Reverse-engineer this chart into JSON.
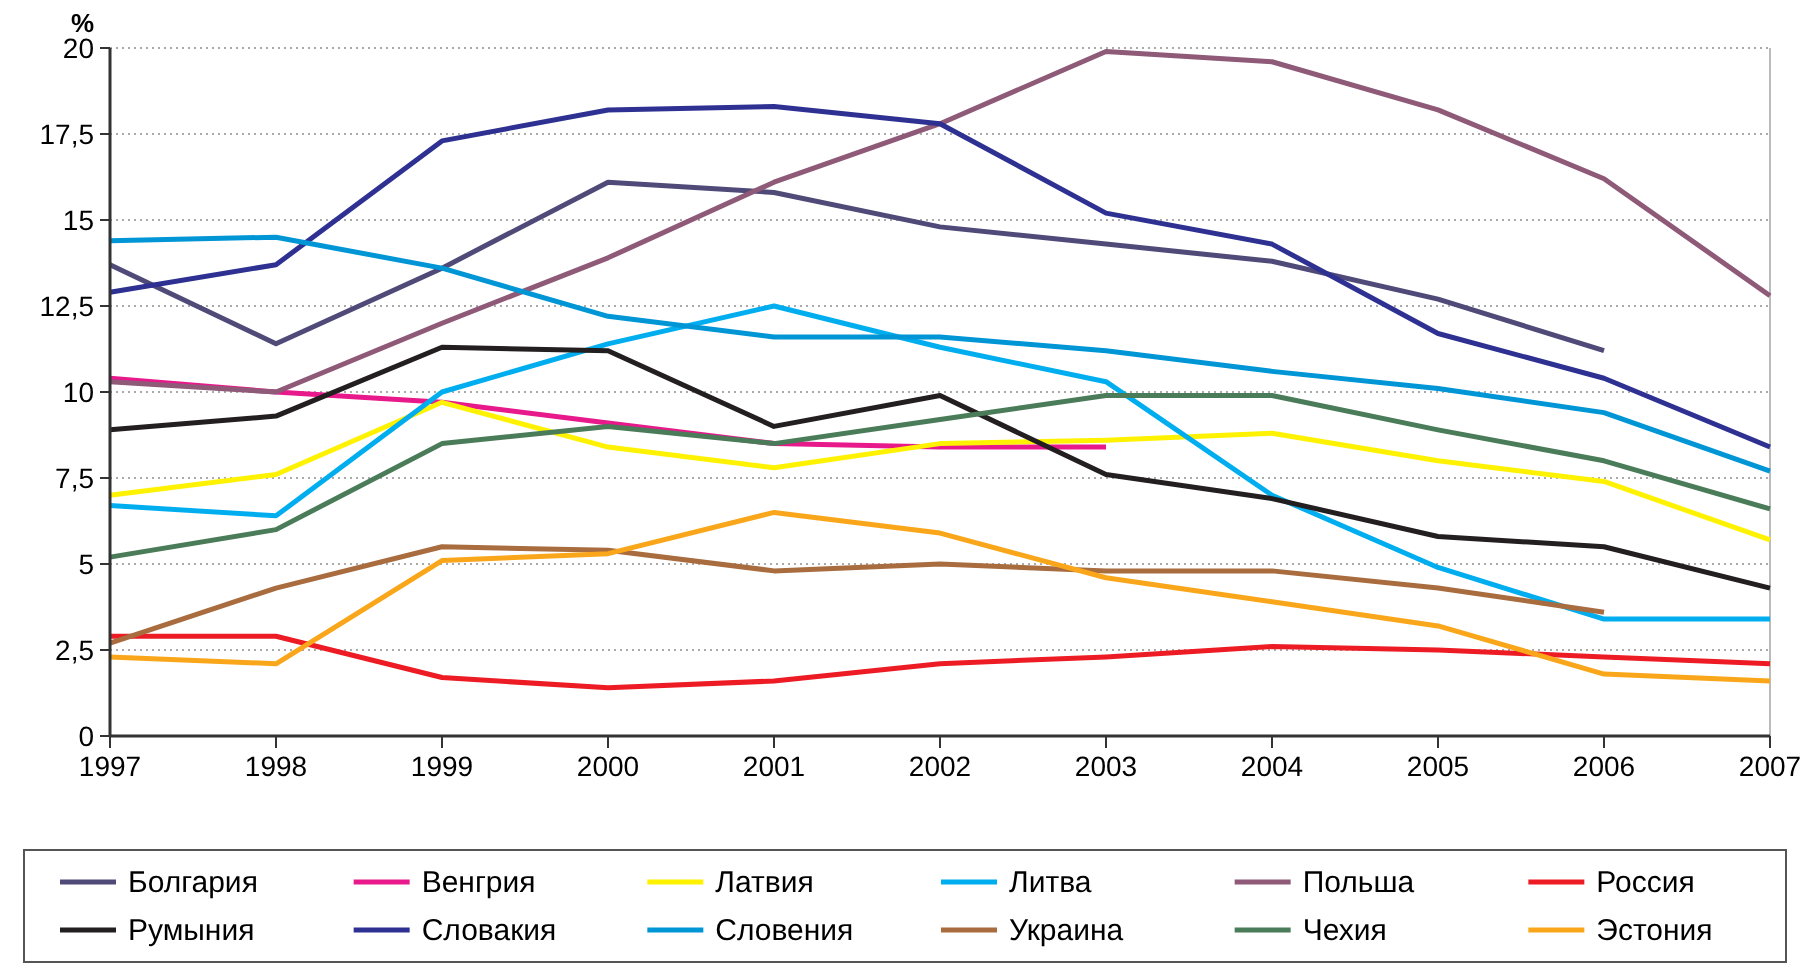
{
  "chart_data": {
    "type": "line",
    "ylabel": "%",
    "x": [
      1997,
      1998,
      1999,
      2000,
      2001,
      2002,
      2003,
      2004,
      2005,
      2006,
      2007
    ],
    "xlim": [
      1997,
      2007
    ],
    "xticks": [
      1997,
      1998,
      1999,
      2000,
      2001,
      2002,
      2003,
      2004,
      2005,
      2006,
      2007
    ],
    "ylim": [
      0,
      20
    ],
    "yticks": [
      0,
      {
        "value": 2.5,
        "label": "2,5"
      },
      5,
      {
        "value": 7.5,
        "label": "7,5"
      },
      10,
      {
        "value": 12.5,
        "label": "12,5"
      },
      15,
      {
        "value": 17.5,
        "label": "17,5"
      },
      20
    ],
    "grid": "y",
    "legend": "bottom",
    "marker": "none",
    "line_style": "solid",
    "series": [
      {
        "name": "Болгария",
        "color": "#4f4a78",
        "values": [
          13.7,
          11.4,
          13.6,
          16.1,
          15.8,
          14.8,
          14.3,
          13.8,
          12.7,
          11.2,
          null
        ]
      },
      {
        "name": "Венгрия",
        "color": "#e8198b",
        "values": [
          10.4,
          10.0,
          9.7,
          9.1,
          8.5,
          8.4,
          8.4,
          null,
          null,
          null,
          null
        ]
      },
      {
        "name": "Латвия",
        "color": "#fff200",
        "values": [
          7.0,
          7.6,
          9.7,
          8.4,
          7.8,
          8.5,
          8.6,
          8.8,
          8.0,
          7.4,
          5.7
        ]
      },
      {
        "name": "Литва",
        "color": "#00aeef",
        "values": [
          6.7,
          6.4,
          10.0,
          11.4,
          12.5,
          11.3,
          10.3,
          7.0,
          4.9,
          3.4,
          3.4
        ]
      },
      {
        "name": "Польша",
        "color": "#8e5a78",
        "values": [
          10.3,
          10.0,
          12.0,
          13.9,
          16.1,
          17.8,
          19.9,
          19.6,
          18.2,
          16.2,
          12.8
        ]
      },
      {
        "name": "Россия",
        "color": "#ed1c24",
        "values": [
          2.9,
          2.9,
          1.7,
          1.4,
          1.6,
          2.1,
          2.3,
          2.6,
          2.5,
          2.3,
          2.1
        ]
      },
      {
        "name": "Румыния",
        "color": "#231f20",
        "values": [
          8.9,
          9.3,
          11.3,
          11.2,
          9.0,
          9.9,
          7.6,
          6.9,
          5.8,
          5.5,
          4.3
        ]
      },
      {
        "name": "Словакия",
        "color": "#2e3192",
        "values": [
          12.9,
          13.7,
          17.3,
          18.2,
          18.3,
          17.8,
          15.2,
          14.3,
          11.7,
          10.4,
          8.4
        ]
      },
      {
        "name": "Словения",
        "color": "#0096d6",
        "values": [
          14.4,
          14.5,
          13.6,
          12.2,
          11.6,
          11.6,
          11.2,
          10.6,
          10.1,
          9.4,
          7.7
        ]
      },
      {
        "name": "Украина",
        "color": "#a86c3f",
        "values": [
          2.7,
          4.3,
          5.5,
          5.4,
          4.8,
          5.0,
          4.8,
          4.8,
          4.3,
          3.6,
          null
        ]
      },
      {
        "name": "Чехия",
        "color": "#4a7c59",
        "values": [
          5.2,
          6.0,
          8.5,
          9.0,
          8.5,
          9.2,
          9.9,
          9.9,
          8.9,
          8.0,
          6.6
        ]
      },
      {
        "name": "Эстония",
        "color": "#faa61a",
        "values": [
          2.3,
          2.1,
          5.1,
          5.3,
          6.5,
          5.9,
          4.6,
          3.9,
          3.2,
          1.8,
          1.6
        ]
      }
    ]
  }
}
